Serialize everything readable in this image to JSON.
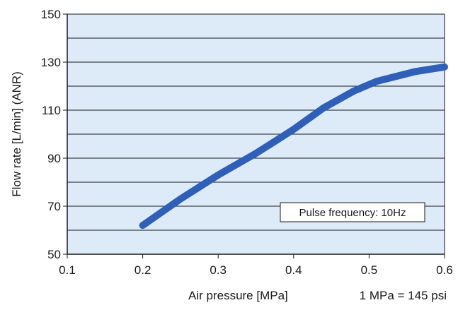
{
  "chart_data": {
    "type": "line",
    "xlabel": "Air pressure [MPa]",
    "xlabel_note": "1 MPa = 145 psi",
    "ylabel": "Flow rate [L/min] (ANR)",
    "xlim": [
      0.1,
      0.6
    ],
    "ylim": [
      50,
      150
    ],
    "xticks": [
      0.1,
      0.2,
      0.3,
      0.4,
      0.5,
      0.6
    ],
    "xtick_labels": [
      "0.1",
      "0.2",
      "0.3",
      "0.4",
      "0.5",
      "0.6"
    ],
    "yticks": [
      50,
      70,
      90,
      110,
      130,
      150
    ],
    "ytick_labels": [
      "50",
      "70",
      "90",
      "110",
      "130",
      "150"
    ],
    "y_minor_gridlines": [
      60,
      80,
      100,
      120,
      140
    ],
    "grid": true,
    "legend": "none",
    "annotation": "Pulse frequency: 10Hz",
    "colors": {
      "plot_background": "#dcebf7",
      "line": "#2f5fb8",
      "grid": "#1a1a1a"
    },
    "series": [
      {
        "x": [
          0.2,
          0.25,
          0.3,
          0.35,
          0.4,
          0.44,
          0.48,
          0.51,
          0.56,
          0.6
        ],
        "y": [
          62,
          73,
          83,
          92,
          102,
          111,
          118,
          122,
          126,
          128
        ]
      }
    ]
  }
}
